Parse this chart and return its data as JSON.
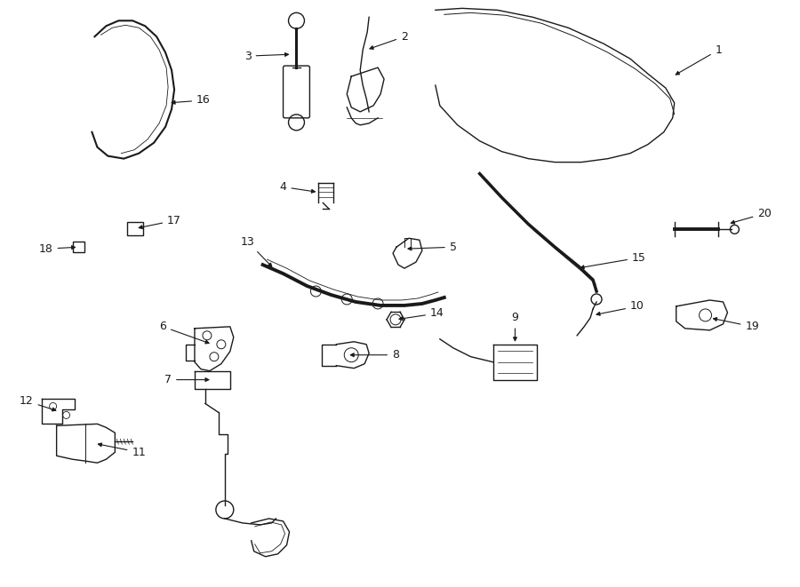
{
  "bg_color": "#ffffff",
  "line_color": "#1a1a1a",
  "lw": 1.0,
  "figsize": [
    9.0,
    6.61
  ],
  "dpi": 100
}
